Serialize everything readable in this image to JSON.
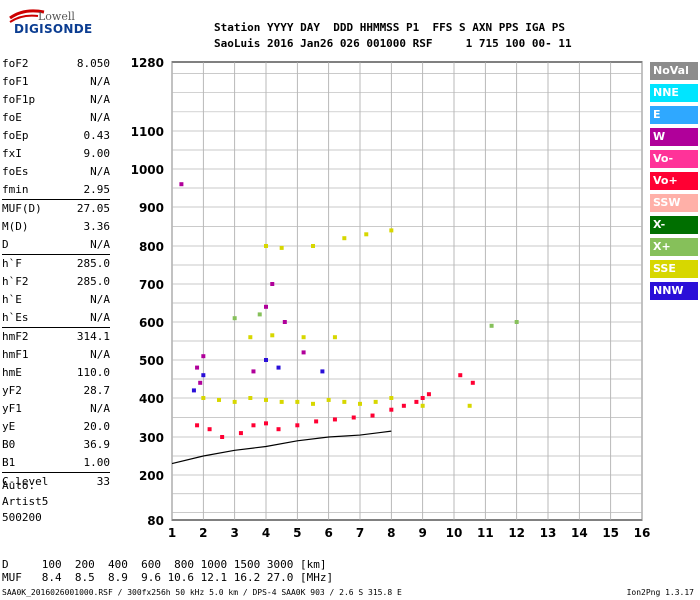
{
  "logo": {
    "line1": "Lowell",
    "line2": "DIGISONDE"
  },
  "header": {
    "line1": "Station YYYY DAY  DDD HHMMSS P1  FFS S AXN PPS IGA PS",
    "line2": "SaoLuis 2016 Jan26 026 001000 RSF     1 715 100 00- 11"
  },
  "params": [
    {
      "k": "foF2",
      "v": "8.050"
    },
    {
      "k": "foF1",
      "v": "N/A"
    },
    {
      "k": "foF1p",
      "v": "N/A"
    },
    {
      "k": "foE",
      "v": "N/A"
    },
    {
      "k": "foEp",
      "v": "0.43"
    },
    {
      "k": "fxI",
      "v": "9.00"
    },
    {
      "k": "foEs",
      "v": "N/A"
    },
    {
      "k": "fmin",
      "v": "2.95"
    },
    {
      "k": "MUF(D)",
      "v": "27.05"
    },
    {
      "k": "M(D)",
      "v": "3.36"
    },
    {
      "k": "D",
      "v": "N/A"
    },
    {
      "k": "h`F",
      "v": "285.0"
    },
    {
      "k": "h`F2",
      "v": "285.0"
    },
    {
      "k": "h`E",
      "v": "N/A"
    },
    {
      "k": "h`Es",
      "v": "N/A"
    },
    {
      "k": "hmF2",
      "v": "314.1"
    },
    {
      "k": "hmF1",
      "v": "N/A"
    },
    {
      "k": "hmE",
      "v": "110.0"
    },
    {
      "k": "yF2",
      "v": "28.7"
    },
    {
      "k": "yF1",
      "v": "N/A"
    },
    {
      "k": "yE",
      "v": "20.0"
    },
    {
      "k": "B0",
      "v": "36.9"
    },
    {
      "k": "B1",
      "v": "1.00"
    },
    {
      "k": "C-level",
      "v": "33"
    }
  ],
  "auto": {
    "line1": "Auto:",
    "line2": "Artist5",
    "line3": "500200"
  },
  "legend": [
    {
      "label": "NoVal",
      "color": "#8c8c8c"
    },
    {
      "label": "NNE",
      "color": "#00e5ff"
    },
    {
      "label": "E",
      "color": "#2fa8ff"
    },
    {
      "label": "W",
      "color": "#b0009a"
    },
    {
      "label": "Vo-",
      "color": "#ff3399"
    },
    {
      "label": "Vo+",
      "color": "#ff0033"
    },
    {
      "label": "SSW",
      "color": "#ffb0a8"
    },
    {
      "label": "X-",
      "color": "#006f00"
    },
    {
      "label": "X+",
      "color": "#86c05a"
    },
    {
      "label": "SSE",
      "color": "#d7d700"
    },
    {
      "label": "NNW",
      "color": "#2a0fd8"
    }
  ],
  "footer": {
    "line1": "D     100  200  400  600  800 1000 1500 3000 [km]",
    "line2": "MUF   8.4  8.5  8.9  9.6 10.6 12.1 16.2 27.0 [MHz]",
    "fileline": "SAA0K_2016026001000.RSF / 300fx256h 50 kHz 5.0 km / DPS-4 SAA0K 903 / 2.6 S 315.8 E",
    "version": "Ion2Png 1.3.17"
  },
  "chart_data": {
    "type": "scatter",
    "xlabel": "",
    "ylabel": "",
    "xlim": [
      1,
      16
    ],
    "ylim": [
      80,
      1280
    ],
    "y_scale": "nonlinear (ionogram height)",
    "x_ticks": [
      1,
      2,
      3,
      4,
      5,
      6,
      7,
      8,
      9,
      10,
      11,
      12,
      13,
      14,
      15,
      16
    ],
    "y_ticks": [
      80,
      200,
      300,
      400,
      500,
      600,
      700,
      800,
      900,
      1000,
      1100,
      1280
    ],
    "grid": true,
    "series": [
      {
        "name": "Vo+",
        "points": [
          [
            1.8,
            330
          ],
          [
            2.2,
            320
          ],
          [
            2.6,
            300
          ],
          [
            3.2,
            310
          ],
          [
            3.6,
            330
          ],
          [
            4.0,
            335
          ],
          [
            4.4,
            320
          ],
          [
            5.0,
            330
          ],
          [
            5.6,
            340
          ],
          [
            6.2,
            345
          ],
          [
            6.8,
            350
          ],
          [
            7.4,
            355
          ],
          [
            8.0,
            370
          ],
          [
            8.4,
            380
          ],
          [
            8.8,
            390
          ],
          [
            9.0,
            400
          ],
          [
            9.2,
            410
          ],
          [
            10.2,
            460
          ],
          [
            10.6,
            440
          ]
        ]
      },
      {
        "name": "SSE",
        "points": [
          [
            2.0,
            400
          ],
          [
            2.5,
            395
          ],
          [
            3.0,
            390
          ],
          [
            3.5,
            400
          ],
          [
            4.0,
            395
          ],
          [
            4.5,
            390
          ],
          [
            5.0,
            390
          ],
          [
            5.5,
            385
          ],
          [
            6.0,
            395
          ],
          [
            6.5,
            390
          ],
          [
            7.0,
            385
          ],
          [
            7.5,
            390
          ],
          [
            8.0,
            400
          ],
          [
            3.5,
            560
          ],
          [
            4.2,
            565
          ],
          [
            5.2,
            560
          ],
          [
            6.2,
            560
          ],
          [
            4.0,
            800
          ],
          [
            4.5,
            795
          ],
          [
            5.5,
            800
          ],
          [
            6.5,
            820
          ],
          [
            7.2,
            830
          ],
          [
            8.0,
            840
          ],
          [
            9.0,
            380
          ],
          [
            10.5,
            380
          ]
        ]
      },
      {
        "name": "W",
        "points": [
          [
            1.8,
            480
          ],
          [
            2.0,
            510
          ],
          [
            1.9,
            440
          ],
          [
            4.2,
            700
          ],
          [
            4.0,
            640
          ],
          [
            4.6,
            600
          ],
          [
            5.2,
            520
          ],
          [
            3.6,
            470
          ],
          [
            1.3,
            960
          ]
        ]
      },
      {
        "name": "NNW",
        "points": [
          [
            1.7,
            420
          ],
          [
            2.0,
            460
          ],
          [
            4.0,
            500
          ],
          [
            4.4,
            480
          ],
          [
            5.8,
            470
          ]
        ]
      },
      {
        "name": "X+",
        "points": [
          [
            3.0,
            610
          ],
          [
            3.8,
            620
          ],
          [
            11.2,
            590
          ],
          [
            12.0,
            600
          ]
        ]
      }
    ],
    "line": {
      "name": "",
      "points": [
        [
          1,
          230
        ],
        [
          2,
          250
        ],
        [
          3,
          265
        ],
        [
          4,
          275
        ],
        [
          5,
          290
        ],
        [
          6,
          300
        ],
        [
          7,
          305
        ],
        [
          8,
          315
        ]
      ]
    }
  }
}
